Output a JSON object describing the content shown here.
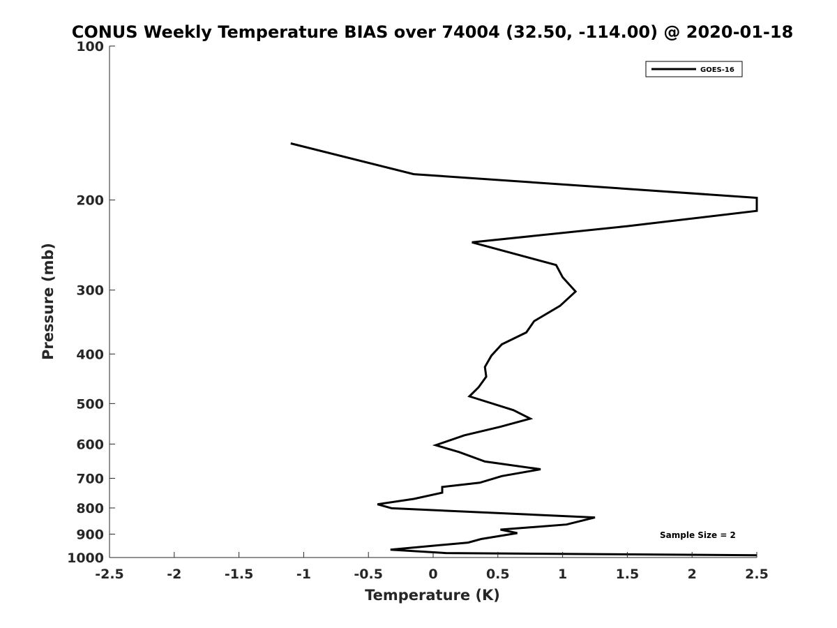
{
  "chart_data": {
    "type": "line",
    "title": "CONUS Weekly Temperature BIAS over 74004 (32.50, -114.00) @ 2020-01-18",
    "xlabel": "Temperature (K)",
    "ylabel": "Pressure (mb)",
    "xlim": [
      -2.5,
      2.5
    ],
    "ylim": [
      100,
      1000
    ],
    "y_scale": "log",
    "y_reversed": true,
    "xticks": [
      -2.5,
      -2,
      -1.5,
      -1,
      -0.5,
      0,
      0.5,
      1,
      1.5,
      2,
      2.5
    ],
    "xtick_labels": [
      "-2.5",
      "-2",
      "-1.5",
      "-1",
      "-0.5",
      "0",
      "0.5",
      "1",
      "1.5",
      "2",
      "2.5"
    ],
    "yticks": [
      100,
      200,
      300,
      400,
      500,
      600,
      700,
      800,
      900,
      1000
    ],
    "ytick_labels": [
      "100",
      "200",
      "300",
      "400",
      "500",
      "600",
      "700",
      "800",
      "900",
      "1000"
    ],
    "grid": false,
    "legend": {
      "position": "top-right",
      "entries": [
        "GOES-16"
      ]
    },
    "annotation": "Sample Size = 2",
    "series": [
      {
        "name": "GOES-16",
        "color": "#000000",
        "x": [
          -1.1,
          -0.15,
          2.5,
          2.5,
          1.5,
          0.3,
          0.95,
          1.0,
          1.1,
          0.98,
          0.78,
          0.72,
          0.53,
          0.45,
          0.4,
          0.41,
          0.35,
          0.28,
          0.62,
          0.75,
          0.52,
          0.24,
          0.02,
          0.2,
          0.4,
          0.83,
          0.53,
          0.36,
          0.07,
          0.07,
          -0.15,
          -0.43,
          -0.32,
          1.25,
          1.03,
          0.52,
          0.65,
          0.37,
          0.27,
          -0.33,
          0.1,
          2.5
        ],
        "y": [
          155,
          178,
          198,
          210,
          225,
          242,
          268,
          283,
          302,
          322,
          345,
          363,
          383,
          403,
          424,
          443,
          465,
          484,
          515,
          535,
          555,
          577,
          603,
          622,
          649,
          672,
          693,
          714,
          728,
          747,
          768,
          787,
          801,
          835,
          862,
          882,
          896,
          920,
          935,
          965,
          980,
          990
        ]
      }
    ]
  }
}
